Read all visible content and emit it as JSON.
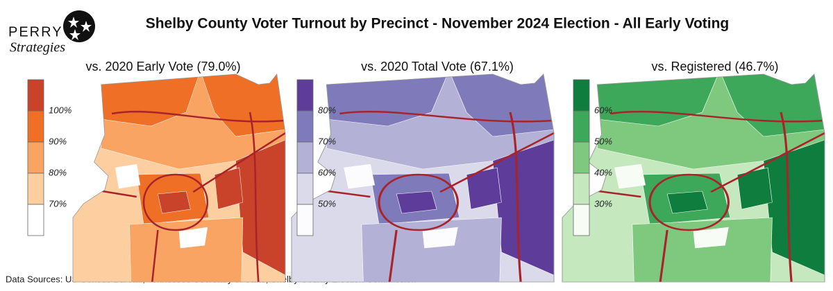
{
  "header": {
    "logo_top": "PERRY",
    "logo_script": "Strategies",
    "title": "Shelby County Voter Turnout by Precinct - November 2024 Election - All Early Voting"
  },
  "panels": [
    {
      "title": "vs. 2020 Early Vote (79.0%)",
      "legend": {
        "labels": [
          "100%",
          "90%",
          "80%",
          "70%"
        ],
        "colors": [
          "#c9432a",
          "#ee6f25",
          "#f9a462",
          "#fdcfa0",
          "#ffffff"
        ]
      }
    },
    {
      "title": "vs. 2020 Total Vote (67.1%)",
      "legend": {
        "labels": [
          "80%",
          "70%",
          "60%",
          "50%"
        ],
        "colors": [
          "#5e3c99",
          "#7f7bba",
          "#b3b1d6",
          "#dadaeb",
          "#fcfbfd"
        ]
      }
    },
    {
      "title": "vs. Registered (46.7%)",
      "legend": {
        "labels": [
          "60%",
          "50%",
          "40%",
          "30%"
        ],
        "colors": [
          "#0e7d3d",
          "#3ea85a",
          "#7fc97f",
          "#c5e8bf",
          "#f7fcf5"
        ]
      }
    }
  ],
  "footer": {
    "sources": "Data Sources: US Census Bureau, Tennessee Secretary of State, Shelby County Election Commission"
  }
}
